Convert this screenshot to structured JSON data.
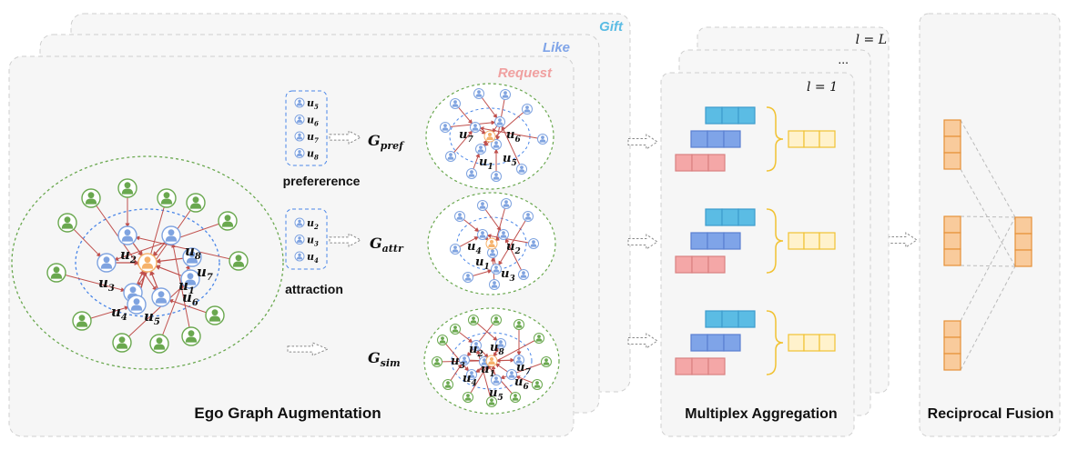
{
  "panels": {
    "ego": {
      "title": "Ego Graph Augmentation"
    },
    "multiplex": {
      "title": "Multiplex Aggregation",
      "layer_top": "l = L",
      "layer_dots": "...",
      "layer_bottom": "l = 1"
    },
    "fusion": {
      "title": "Reciprocal Fusion"
    }
  },
  "relations": [
    "Gift",
    "Like",
    "Request"
  ],
  "relation_colors": {
    "Gift": "#5bbce4",
    "Like": "#7fa4e8",
    "Request": "#f0a0a0"
  },
  "ego_graph": {
    "center": "u",
    "user_labels": [
      {
        "base": "u",
        "sub": "1"
      },
      {
        "base": "u",
        "sub": "2"
      },
      {
        "base": "u",
        "sub": "3"
      },
      {
        "base": "u",
        "sub": "4"
      },
      {
        "base": "u",
        "sub": "5"
      },
      {
        "base": "u",
        "sub": "6"
      },
      {
        "base": "u",
        "sub": "7"
      },
      {
        "base": "u",
        "sub": "8"
      }
    ]
  },
  "augmentations": [
    {
      "caption": "prefererence",
      "list": [
        {
          "base": "u",
          "sub": "5"
        },
        {
          "base": "u",
          "sub": "6"
        },
        {
          "base": "u",
          "sub": "7"
        },
        {
          "base": "u",
          "sub": "8"
        }
      ],
      "graph": {
        "base": "G",
        "sub": "pref"
      },
      "node_labels": [
        {
          "base": "u",
          "sub": "7"
        },
        {
          "base": "u",
          "sub": "6"
        },
        {
          "base": "u",
          "sub": "1"
        },
        {
          "base": "u",
          "sub": "5"
        }
      ]
    },
    {
      "caption": "attraction",
      "list": [
        {
          "base": "u",
          "sub": "2"
        },
        {
          "base": "u",
          "sub": "3"
        },
        {
          "base": "u",
          "sub": "4"
        }
      ],
      "graph": {
        "base": "G",
        "sub": "attr"
      },
      "node_labels": [
        {
          "base": "u",
          "sub": "4"
        },
        {
          "base": "u",
          "sub": "2"
        },
        {
          "base": "u",
          "sub": "1"
        },
        {
          "base": "u",
          "sub": "3"
        }
      ]
    },
    {
      "caption": "",
      "list": [],
      "graph": {
        "base": "G",
        "sub": "sim"
      },
      "node_labels": [
        {
          "base": "u",
          "sub": "2"
        },
        {
          "base": "u",
          "sub": "8"
        },
        {
          "base": "u",
          "sub": "3"
        },
        {
          "base": "u",
          "sub": "1"
        },
        {
          "base": "u",
          "sub": "7"
        },
        {
          "base": "u",
          "sub": "4"
        },
        {
          "base": "u",
          "sub": "5"
        },
        {
          "base": "u",
          "sub": "6"
        }
      ]
    }
  ],
  "colors": {
    "user_blue": "#7fa3e0",
    "center_orange": "#f6b26b",
    "neighbor_green": "#6aa84f",
    "edge_red": "#c0504d",
    "dashed_blue": "#4a86e8",
    "dashed_green": "#6aa84f",
    "emb_cyan": "#5bbce4",
    "emb_blue": "#7fa4e8",
    "emb_pink": "#f4a7a7",
    "emb_yellow": "#ffe599",
    "emb_orange": "#f9cb9c"
  }
}
